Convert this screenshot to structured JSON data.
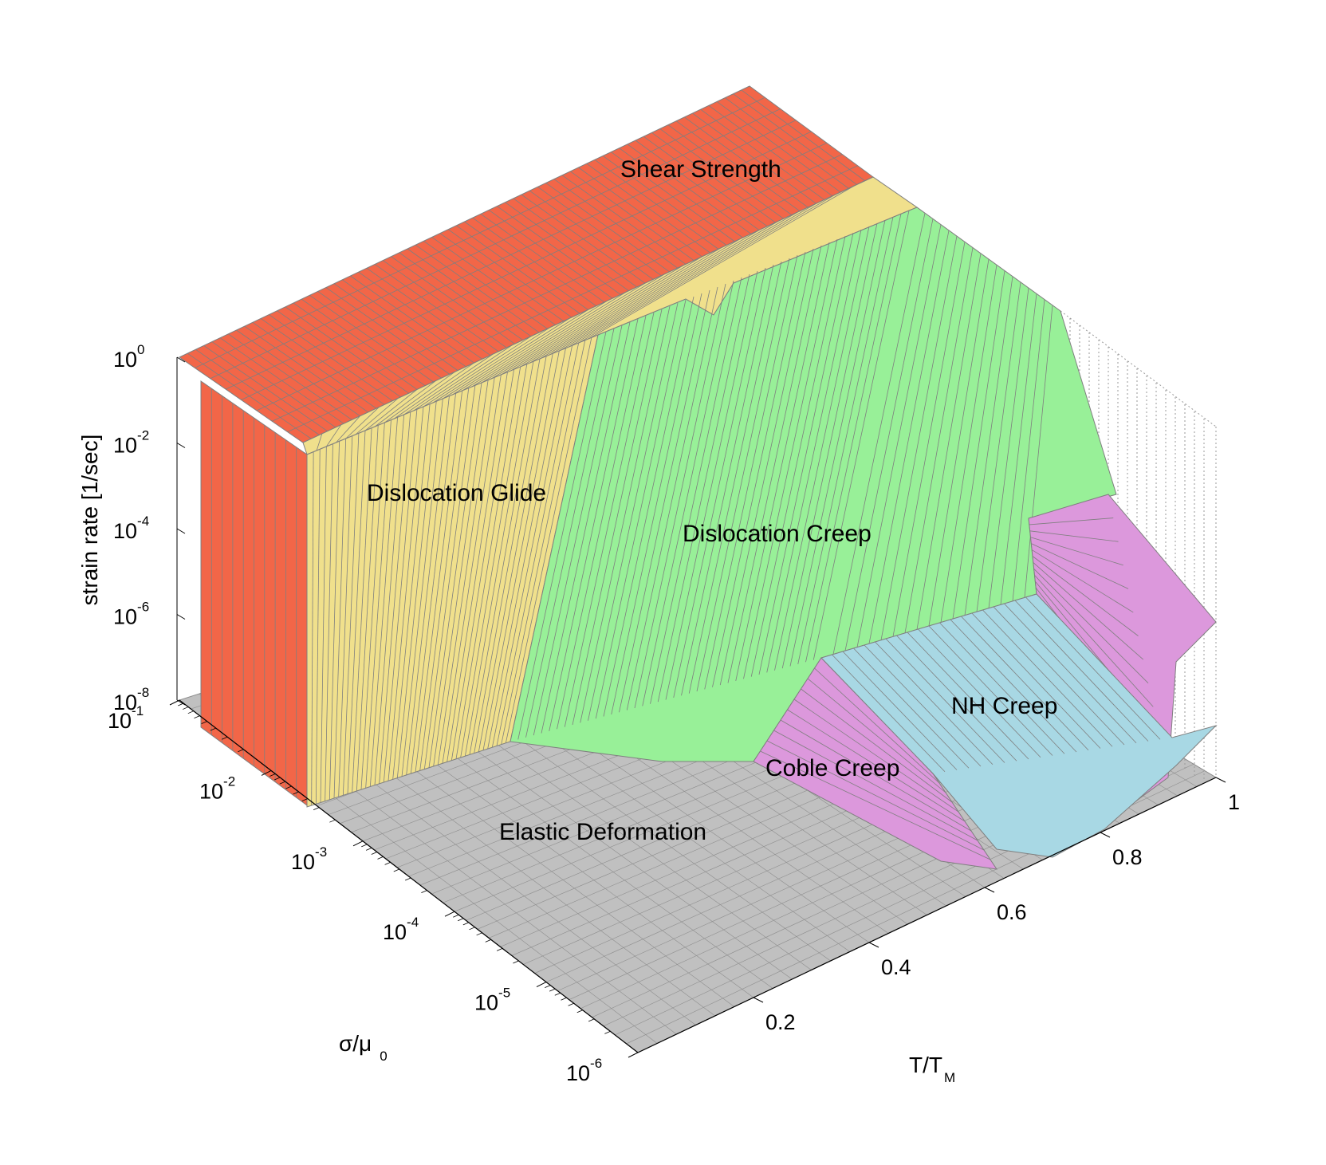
{
  "colors": {
    "background": "#ffffff",
    "shear_strength": "#f26648",
    "dislocation_glide": "#f0e08c",
    "dislocation_creep": "#98f098",
    "coble_creep": "#dc98dc",
    "nh_creep": "#a8d8e4",
    "elastic_deformation": "#c0c0c0",
    "mesh": "#7f7f7f"
  },
  "chart_data": {
    "type": "surface",
    "view": "3d",
    "z_axis": {
      "label": "strain rate [1/sec]",
      "scale": "log",
      "range": [
        1e-08,
        1
      ],
      "ticks": [
        {
          "base": "10",
          "exp": "0",
          "value": 1
        },
        {
          "base": "10",
          "exp": "-2",
          "value": 0.01
        },
        {
          "base": "10",
          "exp": "-4",
          "value": 0.0001
        },
        {
          "base": "10",
          "exp": "-6",
          "value": 1e-06
        },
        {
          "base": "10",
          "exp": "-8",
          "value": 1e-08
        }
      ]
    },
    "stress_axis": {
      "label": "σ/μ",
      "label_sub": "0",
      "scale": "log",
      "range": [
        1e-06,
        0.1
      ],
      "ticks": [
        {
          "base": "10",
          "exp": "-1",
          "value": 0.1
        },
        {
          "base": "10",
          "exp": "-2",
          "value": 0.01
        },
        {
          "base": "10",
          "exp": "-3",
          "value": 0.001
        },
        {
          "base": "10",
          "exp": "-4",
          "value": 0.0001
        },
        {
          "base": "10",
          "exp": "-5",
          "value": 1e-05
        },
        {
          "base": "10",
          "exp": "-6",
          "value": 1e-06
        }
      ]
    },
    "temperature_axis": {
      "label": "T/T",
      "label_sub": "M",
      "scale": "linear",
      "range": [
        0,
        1
      ],
      "ticks": [
        "0.2",
        "0.4",
        "0.6",
        "0.8",
        "1"
      ]
    },
    "regions": [
      {
        "name": "Shear Strength",
        "color": "#f26648"
      },
      {
        "name": "Dislocation Glide",
        "color": "#f0e08c"
      },
      {
        "name": "Dislocation Creep",
        "color": "#98f098"
      },
      {
        "name": "NH Creep",
        "color": "#a8d8e4"
      },
      {
        "name": "Coble Creep",
        "color": "#dc98dc"
      },
      {
        "name": "Elastic Deformation",
        "color": "#c0c0c0"
      }
    ]
  }
}
